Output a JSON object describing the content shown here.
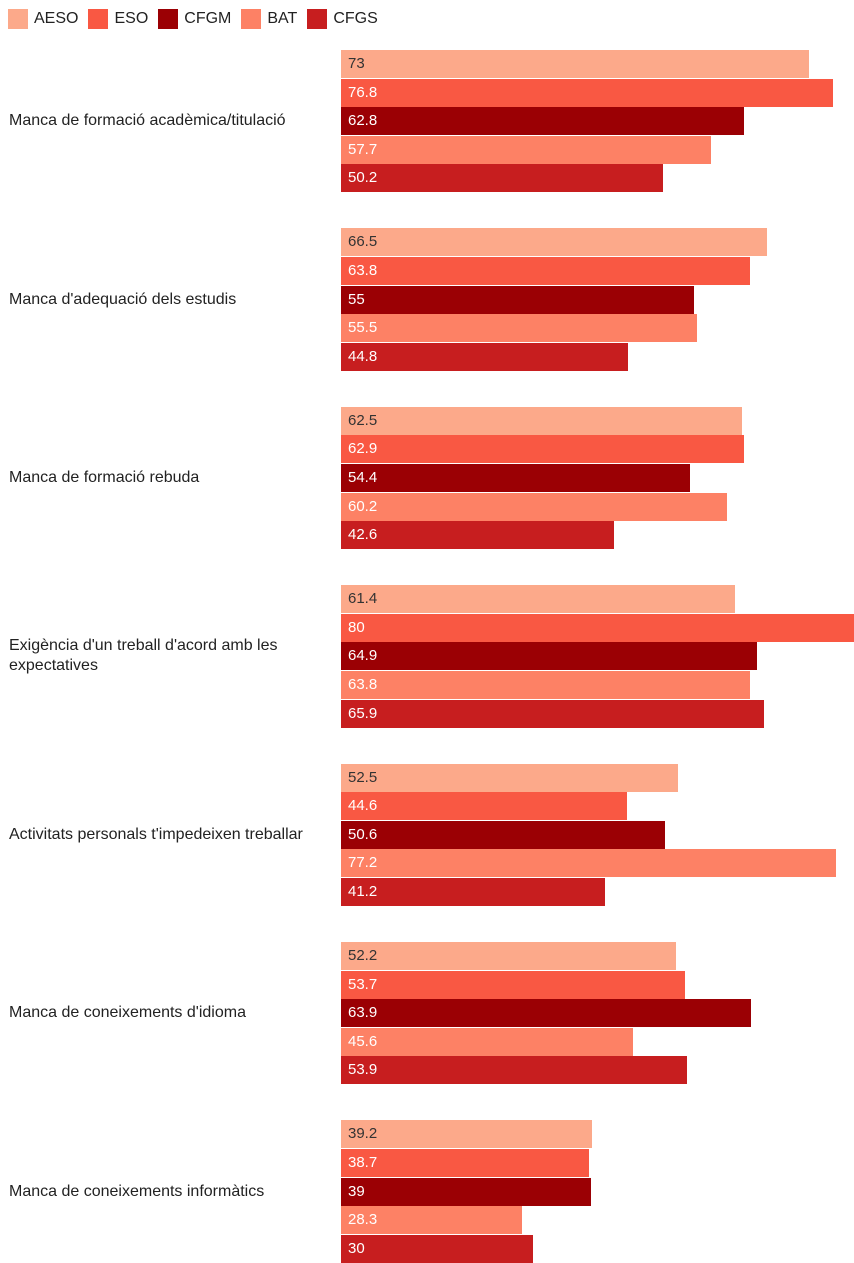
{
  "chart_data": {
    "type": "bar",
    "orientation": "horizontal",
    "categories": [
      "Manca de formació acadèmica/titulació",
      "Manca d'adequació dels estudis",
      "Manca de formació rebuda",
      "Exigència d'un treball d'acord amb les expectatives",
      "Activitats personals t'impedeixen treballar",
      "Manca de coneixements d'idioma",
      "Manca de coneixements informàtics"
    ],
    "series": [
      {
        "name": "AESO",
        "color": "#fca98a",
        "label_color": "#333333",
        "values": [
          73,
          66.5,
          62.5,
          61.4,
          52.5,
          52.2,
          39.2
        ]
      },
      {
        "name": "ESO",
        "color": "#f95843",
        "label_color": "#ffffff",
        "values": [
          76.8,
          63.8,
          62.9,
          80,
          44.6,
          53.7,
          38.7
        ]
      },
      {
        "name": "CFGM",
        "color": "#9b0004",
        "label_color": "#ffffff",
        "values": [
          62.8,
          55,
          54.4,
          64.9,
          50.6,
          63.9,
          39
        ]
      },
      {
        "name": "BAT",
        "color": "#fd8165",
        "label_color": "#ffffff",
        "values": [
          57.7,
          55.5,
          60.2,
          63.8,
          77.2,
          45.6,
          28.3
        ]
      },
      {
        "name": "CFGS",
        "color": "#c71e1f",
        "label_color": "#ffffff",
        "values": [
          50.2,
          44.8,
          42.6,
          65.9,
          41.2,
          53.9,
          30
        ]
      }
    ],
    "xlim": [
      0,
      80
    ],
    "legend_position": "top-left",
    "grid": false
  }
}
